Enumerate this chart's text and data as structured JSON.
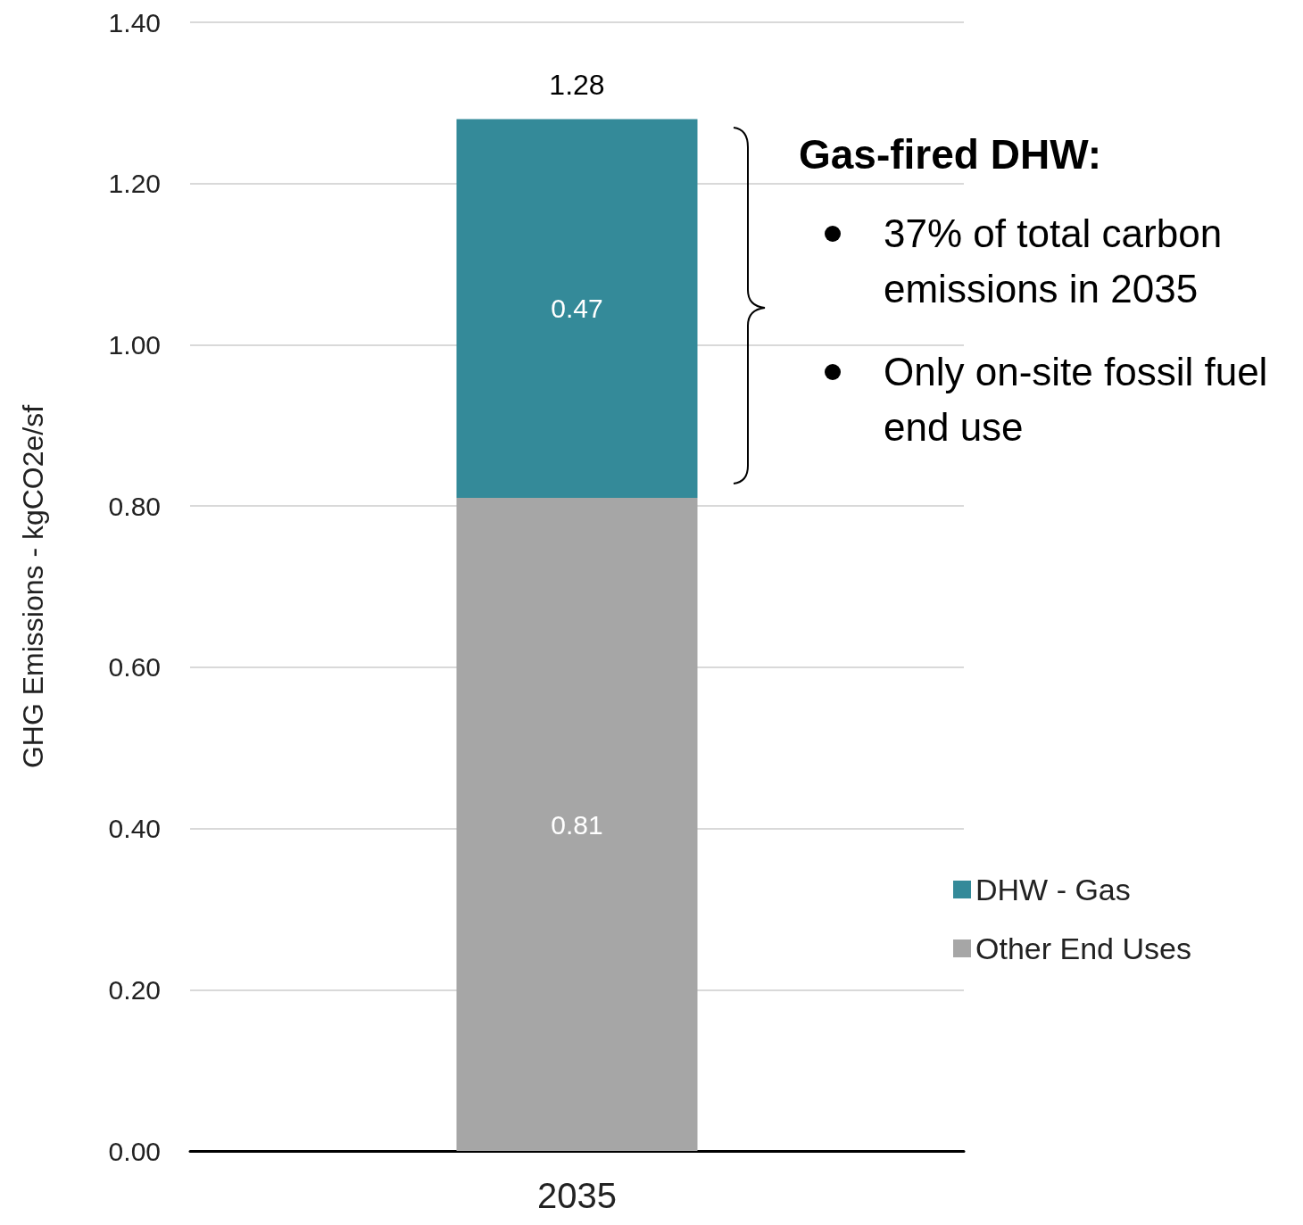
{
  "chart_data": {
    "type": "bar",
    "stacked": true,
    "categories": [
      "2035"
    ],
    "series": [
      {
        "name": "Other End Uses",
        "color": "#a6a6a6",
        "values": [
          0.81
        ]
      },
      {
        "name": "DHW - Gas",
        "color": "#348a99",
        "values": [
          0.47
        ]
      }
    ],
    "totals": [
      "1.28"
    ],
    "data_labels": true,
    "ylabel": "GHG Emissions - kgCO2e/sf",
    "ylim": [
      0,
      1.4
    ],
    "yticks": [
      {
        "value": 0,
        "label": "0.00"
      },
      {
        "value": 0.2,
        "label": "0.20"
      },
      {
        "value": 0.4,
        "label": "0.40"
      },
      {
        "value": 0.6,
        "label": "0.60"
      },
      {
        "value": 0.8,
        "label": "0.80"
      },
      {
        "value": 1.0,
        "label": "1.00"
      },
      {
        "value": 1.2,
        "label": "1.20"
      },
      {
        "value": 1.4,
        "label": "1.40"
      }
    ],
    "grid": "y",
    "legend": "right",
    "annotations": [
      "Gas-fired DHW:",
      "37% of total carbon emissions in 2035",
      "Only on-site fossil fuel end use"
    ]
  }
}
